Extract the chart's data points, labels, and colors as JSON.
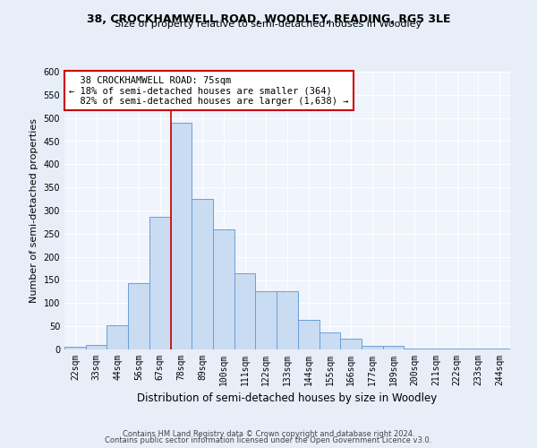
{
  "title1": "38, CROCKHAMWELL ROAD, WOODLEY, READING, RG5 3LE",
  "title2": "Size of property relative to semi-detached houses in Woodley",
  "xlabel": "Distribution of semi-detached houses by size in Woodley",
  "ylabel": "Number of semi-detached properties",
  "categories": [
    "22sqm",
    "33sqm",
    "44sqm",
    "56sqm",
    "67sqm",
    "78sqm",
    "89sqm",
    "100sqm",
    "111sqm",
    "122sqm",
    "133sqm",
    "144sqm",
    "155sqm",
    "166sqm",
    "177sqm",
    "189sqm",
    "200sqm",
    "211sqm",
    "222sqm",
    "233sqm",
    "244sqm"
  ],
  "values": [
    5,
    10,
    52,
    143,
    287,
    490,
    325,
    260,
    165,
    125,
    125,
    63,
    37,
    23,
    8,
    8,
    2,
    1,
    1,
    1,
    1
  ],
  "bar_color": "#c9dcf2",
  "bar_edge_color": "#6a9fd8",
  "vline_x": 4.5,
  "vline_label": "38 CROCKHAMWELL ROAD: 75sqm",
  "smaller_pct": "18%",
  "smaller_count": "364",
  "larger_pct": "82%",
  "larger_count": "1,638",
  "footnote1": "Contains HM Land Registry data © Crown copyright and database right 2024.",
  "footnote2": "Contains public sector information licensed under the Open Government Licence v3.0.",
  "ylim": [
    0,
    600
  ],
  "yticks": [
    0,
    50,
    100,
    150,
    200,
    250,
    300,
    350,
    400,
    450,
    500,
    550,
    600
  ],
  "bg_color": "#e8eef8",
  "plot_bg_color": "#f0f4fc",
  "grid_color": "#ffffff",
  "annotation_box_color": "#ffffff",
  "annotation_box_edge_color": "#cc0000",
  "vline_color": "#cc0000",
  "title1_fontsize": 9,
  "title2_fontsize": 8,
  "ylabel_fontsize": 8,
  "xlabel_fontsize": 8.5,
  "tick_fontsize": 7,
  "annot_fontsize": 7.5,
  "footnote_fontsize": 6
}
